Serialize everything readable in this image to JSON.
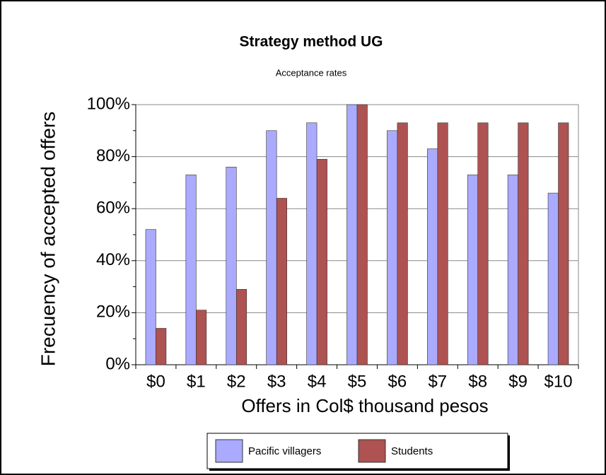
{
  "chart_data": {
    "type": "bar",
    "title": "Strategy method UG",
    "subtitle": "Acceptance rates",
    "x_label": "Offers in Col$ thousand pesos",
    "y_label": "Frecuency of accepted offers",
    "categories": [
      "$0",
      "$1",
      "$2",
      "$3",
      "$4",
      "$5",
      "$6",
      "$7",
      "$8",
      "$9",
      "$10"
    ],
    "series": [
      {
        "name": "Pacific villagers",
        "color": "#aaaaff",
        "values": [
          52,
          73,
          76,
          90,
          93,
          100,
          90,
          83,
          73,
          73,
          66
        ]
      },
      {
        "name": "Students",
        "color": "#ae5252",
        "values": [
          14,
          21,
          29,
          64,
          79,
          100,
          93,
          93,
          93,
          93,
          93
        ]
      }
    ],
    "ylim": [
      0,
      100
    ],
    "yticks": [
      {
        "value": 0,
        "label": "0%"
      },
      {
        "value": 20,
        "label": "20%"
      },
      {
        "value": 40,
        "label": "40%"
      },
      {
        "value": 60,
        "label": "60%"
      },
      {
        "value": 80,
        "label": "80%"
      },
      {
        "value": 100,
        "label": "100%"
      }
    ],
    "yminorticks": [
      10,
      30,
      50,
      70,
      90
    ],
    "grid": true,
    "legend": "bottom"
  }
}
